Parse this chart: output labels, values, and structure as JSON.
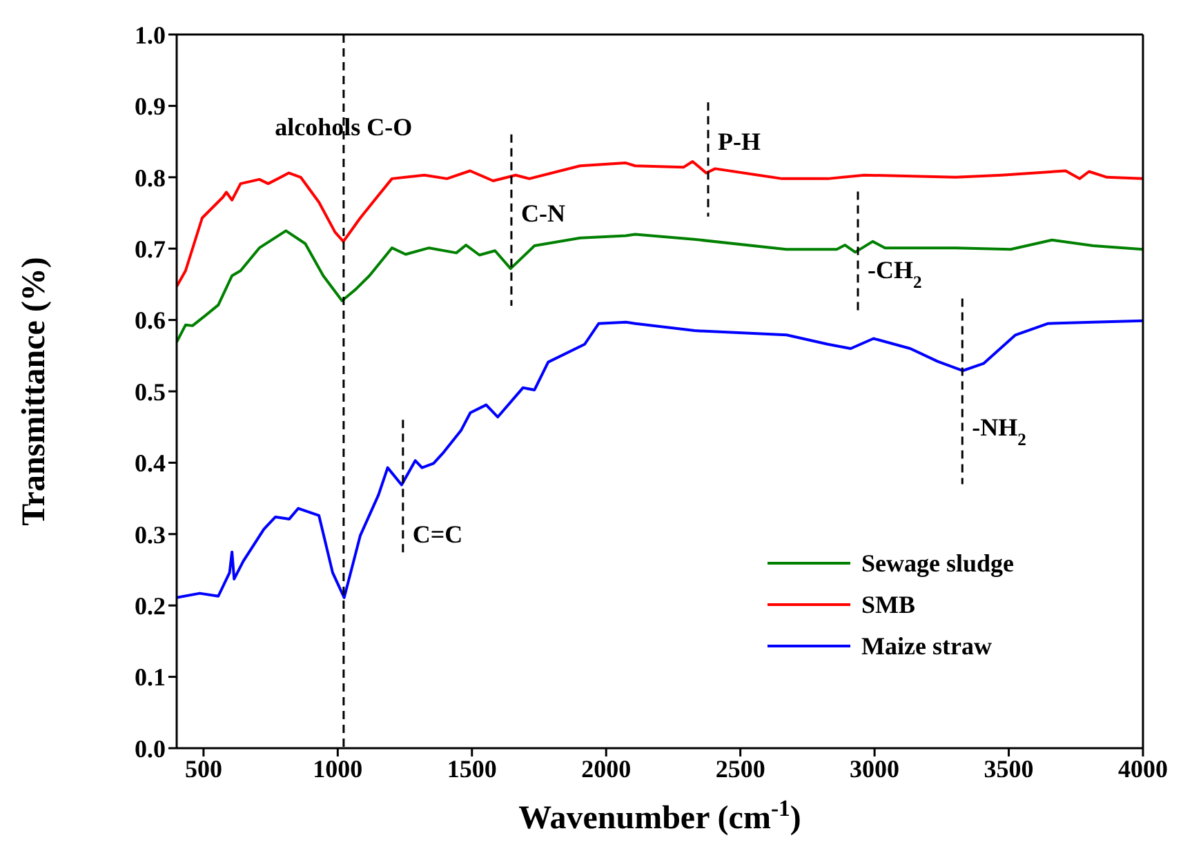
{
  "chart_data": {
    "type": "line",
    "xlabel": "Wavenumber (cm$^{-1}$)",
    "ylabel": "Transmittance (%)",
    "xlim": [
      400,
      4000
    ],
    "xticks": [
      500,
      1000,
      1500,
      2000,
      2500,
      3000,
      3500,
      4000
    ],
    "ylim": [
      0,
      1
    ],
    "yticks": [
      {
        "value": 0,
        "label": "0.0"
      },
      0.1,
      0.2,
      0.3,
      0.4,
      0.5,
      0.6,
      0.7,
      0.8,
      0.9,
      {
        "value": 1,
        "label": "1.0"
      }
    ],
    "grid": false,
    "legend": "bottom right",
    "marker": "none",
    "line_style": "solid",
    "series": [
      {
        "name": "Sewage sludge",
        "color": "#008000",
        "x": [
          400,
          433,
          459,
          503,
          555,
          606,
          638,
          708,
          807,
          879,
          946,
          1016,
          1067,
          1118,
          1202,
          1253,
          1340,
          1442,
          1478,
          1528,
          1586,
          1644,
          1733,
          1903,
          2073,
          2108,
          2328,
          2671,
          2859,
          2890,
          2928,
          2993,
          3039,
          3302,
          3507,
          3661,
          3814,
          4000
        ],
        "values": [
          0.569,
          0.593,
          0.592,
          0.605,
          0.621,
          0.662,
          0.669,
          0.701,
          0.725,
          0.707,
          0.662,
          0.627,
          0.643,
          0.662,
          0.701,
          0.692,
          0.701,
          0.694,
          0.705,
          0.691,
          0.697,
          0.672,
          0.704,
          0.715,
          0.718,
          0.72,
          0.713,
          0.699,
          0.699,
          0.705,
          0.695,
          0.71,
          0.701,
          0.701,
          0.699,
          0.712,
          0.704,
          0.699
        ]
      },
      {
        "name": "SMB",
        "color": "#ff0000",
        "x": [
          400,
          433,
          495,
          572,
          585,
          606,
          638,
          708,
          741,
          818,
          862,
          930,
          990,
          1021,
          1084,
          1150,
          1202,
          1323,
          1407,
          1493,
          1579,
          1663,
          1714,
          1903,
          2073,
          2108,
          2288,
          2322,
          2373,
          2406,
          2655,
          2826,
          2962,
          3302,
          3474,
          3712,
          3764,
          3799,
          3866,
          4000
        ],
        "values": [
          0.647,
          0.669,
          0.743,
          0.772,
          0.779,
          0.768,
          0.791,
          0.797,
          0.791,
          0.806,
          0.8,
          0.765,
          0.723,
          0.71,
          0.743,
          0.774,
          0.798,
          0.803,
          0.798,
          0.809,
          0.795,
          0.803,
          0.798,
          0.816,
          0.82,
          0.816,
          0.814,
          0.822,
          0.806,
          0.812,
          0.798,
          0.798,
          0.803,
          0.8,
          0.803,
          0.809,
          0.798,
          0.808,
          0.8,
          0.798
        ]
      },
      {
        "name": "Maize straw",
        "color": "#0000ff",
        "x": [
          400,
          486,
          555,
          597,
          606,
          614,
          648,
          725,
          768,
          819,
          853,
          930,
          981,
          1024,
          1084,
          1152,
          1186,
          1238,
          1289,
          1314,
          1357,
          1391,
          1459,
          1494,
          1553,
          1596,
          1690,
          1733,
          1784,
          1920,
          1972,
          2074,
          2108,
          2330,
          2672,
          2826,
          2911,
          2996,
          3133,
          3235,
          3329,
          3406,
          3525,
          3645,
          3814,
          4000
        ],
        "values": [
          0.211,
          0.217,
          0.213,
          0.246,
          0.275,
          0.237,
          0.262,
          0.307,
          0.324,
          0.321,
          0.336,
          0.326,
          0.246,
          0.211,
          0.298,
          0.355,
          0.393,
          0.369,
          0.403,
          0.393,
          0.399,
          0.413,
          0.445,
          0.47,
          0.481,
          0.464,
          0.505,
          0.502,
          0.541,
          0.566,
          0.595,
          0.597,
          0.595,
          0.585,
          0.579,
          0.566,
          0.56,
          0.574,
          0.56,
          0.542,
          0.529,
          0.539,
          0.579,
          0.595,
          0.597,
          0.599
        ]
      }
    ],
    "ref_lines": [
      {
        "axis": "x",
        "value": 1022,
        "label": "alcohols C-O",
        "line_style": "dashed",
        "color": "#000000"
      },
      {
        "axis": "x",
        "value": 1647,
        "label": "C-N",
        "line_style": "dashed",
        "color": "#000000"
      },
      {
        "axis": "x",
        "value": 2380,
        "label": "P-H",
        "line_style": "dashed",
        "color": "#000000"
      },
      {
        "axis": "x",
        "value": 2938,
        "label": "-CH$_{2}$",
        "line_style": "dashed",
        "color": "#000000"
      },
      {
        "axis": "x",
        "value": 3327,
        "label": "-NH$_{2}$",
        "line_style": "dashed",
        "color": "#000000"
      },
      {
        "axis": "x",
        "value": 1243,
        "label": "C=C",
        "line_style": "dashed",
        "color": "#000000"
      }
    ]
  }
}
